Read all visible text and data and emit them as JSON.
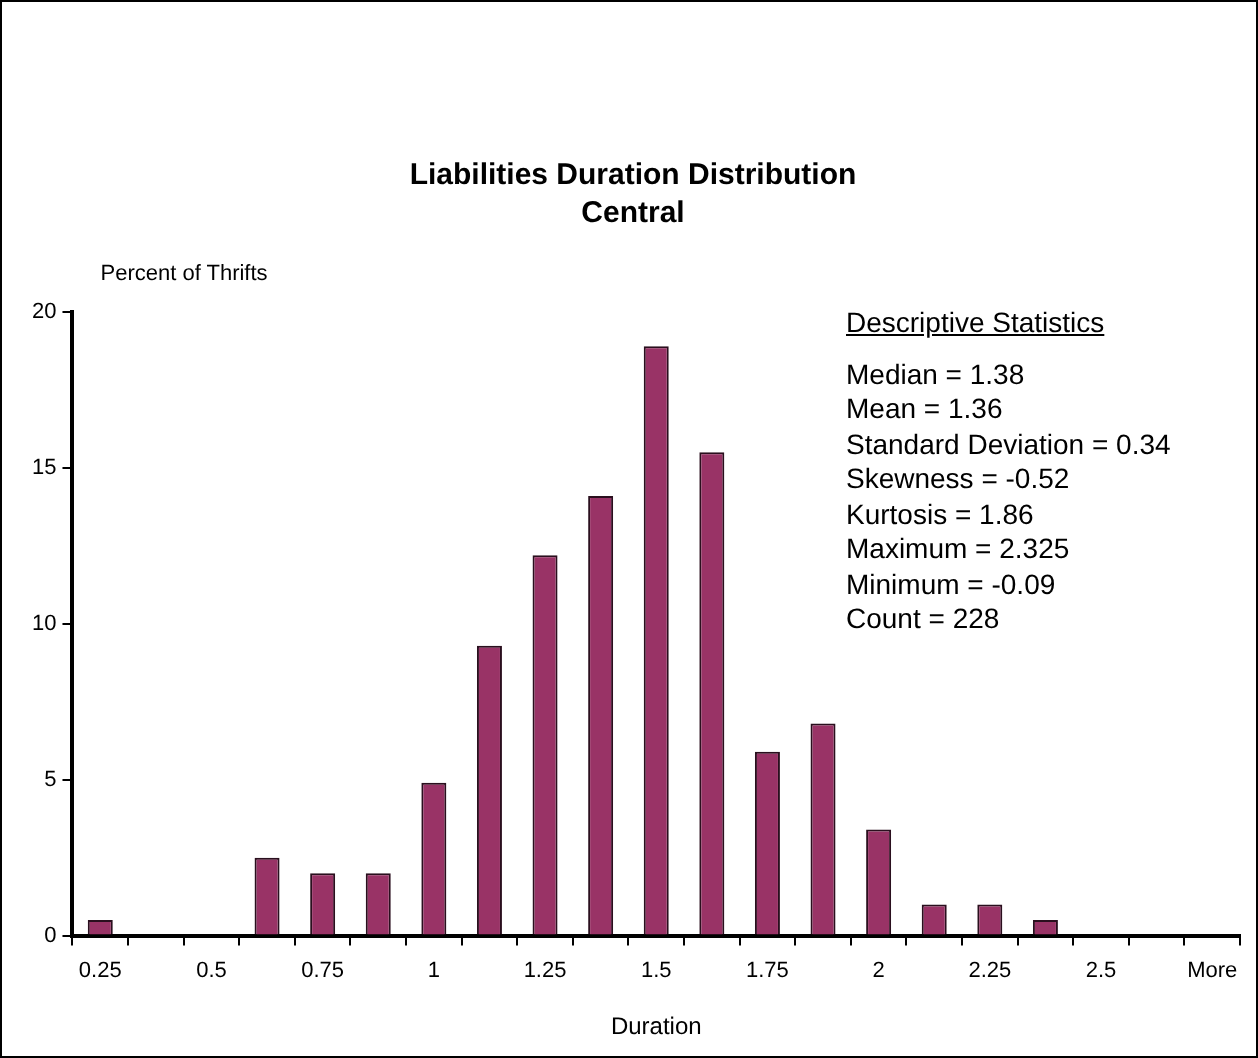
{
  "chart_data": {
    "type": "bar",
    "title": "Liabilities Duration Distribution",
    "subtitle": "Central",
    "xlabel": "Duration",
    "ylabel": "Percent of Thrifts",
    "categories": [
      "0.25",
      null,
      "0.5",
      null,
      "0.75",
      null,
      "1",
      null,
      "1.25",
      null,
      "1.5",
      null,
      "1.75",
      null,
      "2",
      null,
      "2.25",
      null,
      "2.5",
      null,
      "More"
    ],
    "values": [
      0.5,
      0,
      0,
      2.5,
      2.0,
      2.0,
      4.9,
      9.3,
      12.2,
      14.1,
      18.9,
      15.5,
      5.9,
      6.8,
      3.4,
      1.0,
      1.0,
      0.5,
      0,
      0,
      0
    ],
    "color": "#993366",
    "ylim": [
      0,
      20
    ],
    "yticks": [
      0,
      5,
      10,
      15,
      20
    ],
    "grid": false,
    "legend": false,
    "annotations": [
      "Descriptive Statistics",
      "Median = 1.38",
      "Mean = 1.36",
      "Standard Deviation = 0.34",
      "Skewness = -0.52",
      "Kurtosis = 1.86",
      "Maximum = 2.325",
      "Minimum = -0.09",
      "Count = 228"
    ]
  }
}
